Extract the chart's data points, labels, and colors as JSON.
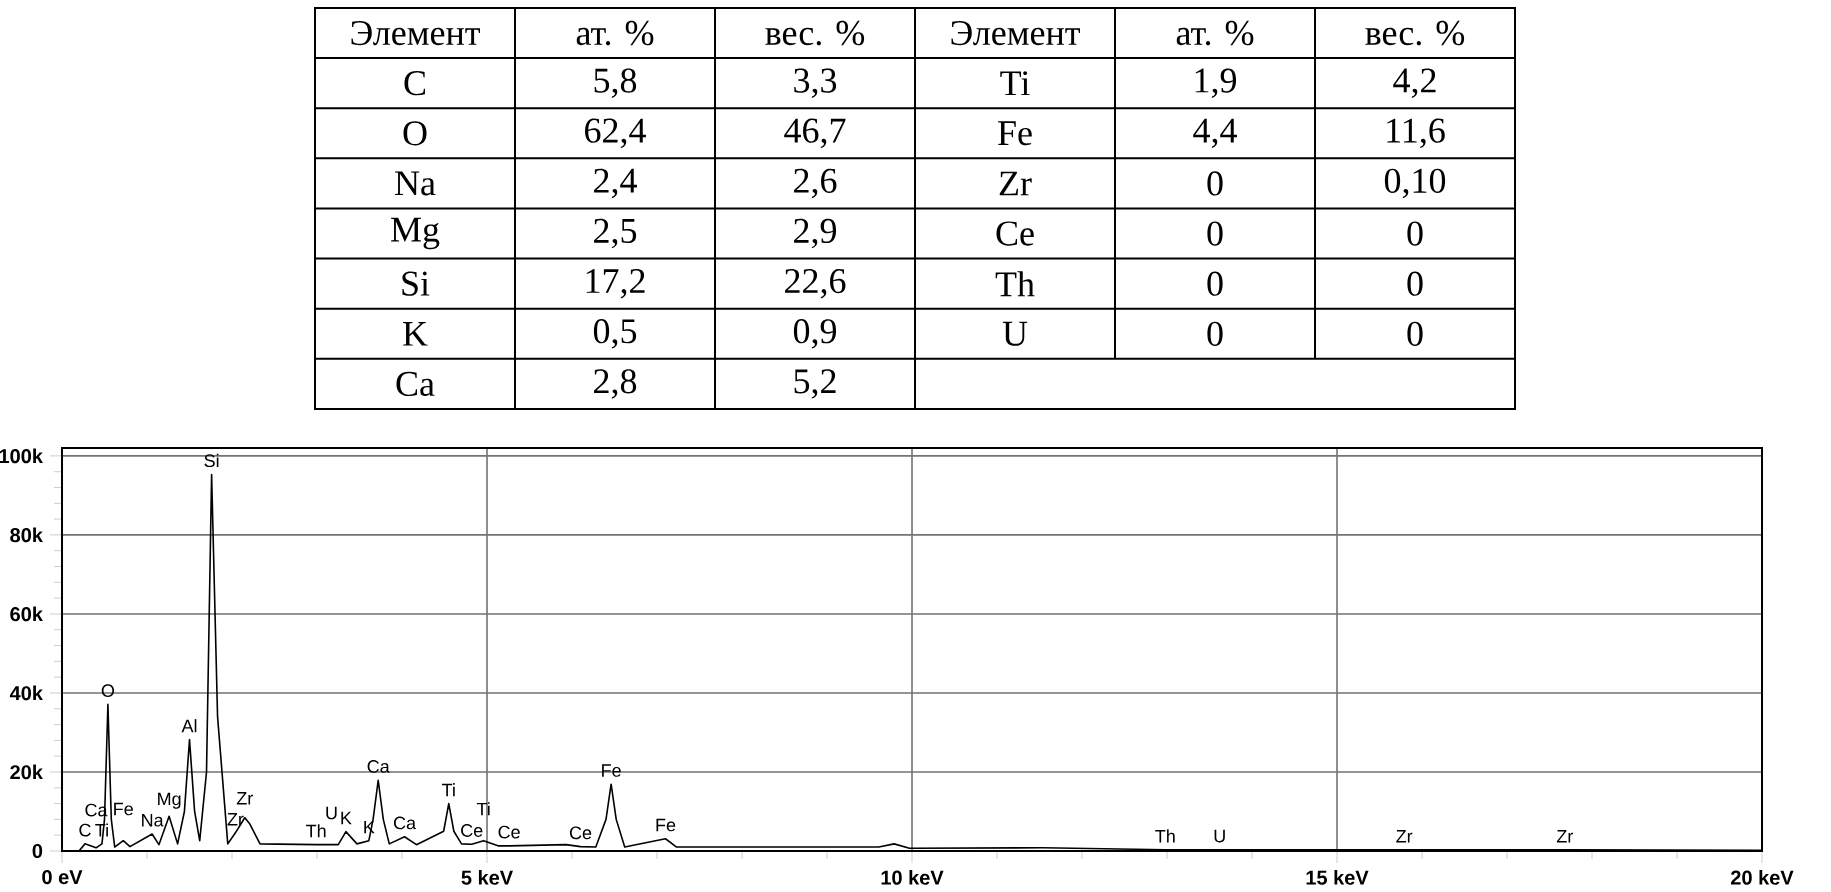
{
  "chart_data": [
    {
      "type": "other",
      "categories": [
        "Элемент",
        "ат. %",
        "вес. %",
        "Элемент",
        "ат. %",
        "вес. %"
      ],
      "annotations": [
        "C",
        "5,8",
        "3,3",
        "Ti",
        "1,9",
        "4,2",
        "O",
        "62,4",
        "46,7",
        "Fe",
        "4,4",
        "11,6",
        "Na",
        "2,4",
        "2,6",
        "Zr",
        "0",
        "0,10",
        "Mg",
        "2,5",
        "2,9",
        "Ce",
        "0",
        "0",
        "Si",
        "17,2",
        "22,6",
        "Th",
        "0",
        "0",
        "K",
        "0,5",
        "0,9",
        "U",
        "0",
        "0",
        "Ca",
        "2,8",
        "5,2"
      ]
    },
    {
      "type": "line",
      "color": "#000000",
      "grid": true,
      "x": [
        0,
        0.2,
        0.27,
        0.4,
        0.47,
        0.5,
        0.54,
        0.58,
        0.62,
        0.72,
        0.8,
        1.06,
        1.14,
        1.26,
        1.36,
        1.44,
        1.5,
        1.56,
        1.62,
        1.7,
        1.76,
        1.83,
        1.95,
        2.04,
        2.15,
        2.21,
        2.33,
        2.99,
        3.17,
        3.25,
        3.34,
        3.47,
        3.61,
        3.66,
        3.72,
        3.78,
        3.85,
        4.03,
        4.17,
        4.49,
        4.55,
        4.61,
        4.7,
        4.82,
        4.96,
        5.13,
        5.26,
        5.93,
        6.1,
        6.28,
        6.4,
        6.46,
        6.52,
        6.62,
        7.1,
        7.23,
        9.61,
        9.79,
        9.97,
        11.54,
        12.98,
        13.11,
        13.62,
        15.79,
        17.68,
        20
      ],
      "values": [
        0,
        0,
        1800,
        800,
        1800,
        8000,
        37100,
        8000,
        1000,
        2600,
        1100,
        4300,
        1600,
        8800,
        1800,
        10000,
        28200,
        10000,
        2600,
        20000,
        95300,
        34000,
        1800,
        4600,
        8400,
        6800,
        1800,
        1600,
        1600,
        1600,
        4900,
        1800,
        2600,
        8000,
        17900,
        8000,
        1800,
        3600,
        1600,
        5000,
        12000,
        5000,
        1800,
        1700,
        2600,
        1300,
        1300,
        1600,
        1100,
        1000,
        8000,
        16900,
        8000,
        1000,
        3100,
        1000,
        1000,
        1800,
        700,
        800,
        300,
        300,
        300,
        300,
        300,
        200
      ],
      "xlim": [
        0,
        20
      ],
      "ylim": [
        0,
        102000
      ],
      "xticks": [
        {
          "value": 0,
          "label": "0 eV"
        },
        {
          "value": 1,
          "label": null
        },
        {
          "value": 2,
          "label": null
        },
        {
          "value": 3,
          "label": null
        },
        {
          "value": 4,
          "label": null
        },
        {
          "value": 5,
          "label": "5 keV"
        },
        {
          "value": 6,
          "label": null
        },
        {
          "value": 7,
          "label": null
        },
        {
          "value": 8,
          "label": null
        },
        {
          "value": 9,
          "label": null
        },
        {
          "value": 10,
          "label": "10 keV"
        },
        {
          "value": 11,
          "label": null
        },
        {
          "value": 12,
          "label": null
        },
        {
          "value": 13,
          "label": null
        },
        {
          "value": 14,
          "label": null
        },
        {
          "value": 15,
          "label": "15 keV"
        },
        {
          "value": 16,
          "label": null
        },
        {
          "value": 17,
          "label": null
        },
        {
          "value": 18,
          "label": null
        },
        {
          "value": 19,
          "label": null
        },
        {
          "value": 20,
          "label": "20 keV"
        }
      ],
      "yticks": [
        0,
        {
          "value": 4000,
          "label": null
        },
        {
          "value": 8000,
          "label": null
        },
        {
          "value": 12000,
          "label": null
        },
        {
          "value": 16000,
          "label": null
        },
        {
          "value": 20000,
          "label": "20k"
        },
        {
          "value": 24000,
          "label": null
        },
        {
          "value": 28000,
          "label": null
        },
        {
          "value": 32000,
          "label": null
        },
        {
          "value": 36000,
          "label": null
        },
        {
          "value": 40000,
          "label": "40k"
        },
        {
          "value": 44000,
          "label": null
        },
        {
          "value": 48000,
          "label": null
        },
        {
          "value": 52000,
          "label": null
        },
        {
          "value": 56000,
          "label": null
        },
        {
          "value": 60000,
          "label": "60k"
        },
        {
          "value": 64000,
          "label": null
        },
        {
          "value": 68000,
          "label": null
        },
        {
          "value": 72000,
          "label": null
        },
        {
          "value": 76000,
          "label": null
        },
        {
          "value": 80000,
          "label": "80k"
        },
        {
          "value": 84000,
          "label": null
        },
        {
          "value": 88000,
          "label": null
        },
        {
          "value": 92000,
          "label": null
        },
        {
          "value": 96000,
          "label": null
        },
        {
          "value": 100000,
          "label": "100k"
        }
      ],
      "annotations": [
        {
          "text": "C",
          "x": 0.27,
          "y": 1800
        },
        {
          "text": "Ca",
          "x": 0.4,
          "y": 800
        },
        {
          "text": "Ti",
          "x": 0.47,
          "y": 1800
        },
        {
          "text": "O",
          "x": 0.54,
          "y": 37100
        },
        {
          "text": "Fe",
          "x": 0.72,
          "y": 2600
        },
        {
          "text": "Na",
          "x": 1.06,
          "y": 4300
        },
        {
          "text": "Mg",
          "x": 1.26,
          "y": 8800
        },
        {
          "text": "Al",
          "x": 1.5,
          "y": 28200
        },
        {
          "text": "Si",
          "x": 1.76,
          "y": 95300
        },
        {
          "text": "Zr",
          "x": 2.04,
          "y": 4600
        },
        {
          "text": "Zr",
          "x": 2.15,
          "y": 8400
        },
        {
          "text": "Th",
          "x": 2.99,
          "y": 1600
        },
        {
          "text": "U",
          "x": 3.17,
          "y": 1600
        },
        {
          "text": "K",
          "x": 3.34,
          "y": 4900
        },
        {
          "text": "K",
          "x": 3.61,
          "y": 2600
        },
        {
          "text": "Ca",
          "x": 3.72,
          "y": 17900
        },
        {
          "text": "Ca",
          "x": 4.03,
          "y": 3600
        },
        {
          "text": "Ti",
          "x": 4.55,
          "y": 12000
        },
        {
          "text": "Ce",
          "x": 4.82,
          "y": 1700
        },
        {
          "text": "Ti",
          "x": 4.96,
          "y": 2600
        },
        {
          "text": "Ce",
          "x": 5.26,
          "y": 1300
        },
        {
          "text": "Ce",
          "x": 6.1,
          "y": 1100
        },
        {
          "text": "Fe",
          "x": 6.46,
          "y": 16900
        },
        {
          "text": "Fe",
          "x": 7.1,
          "y": 3100
        },
        {
          "text": "Th",
          "x": 12.98,
          "y": 300
        },
        {
          "text": "U",
          "x": 13.62,
          "y": 300
        },
        {
          "text": "Zr",
          "x": 15.79,
          "y": 300
        },
        {
          "text": "Zr",
          "x": 17.68,
          "y": 300
        }
      ]
    }
  ]
}
